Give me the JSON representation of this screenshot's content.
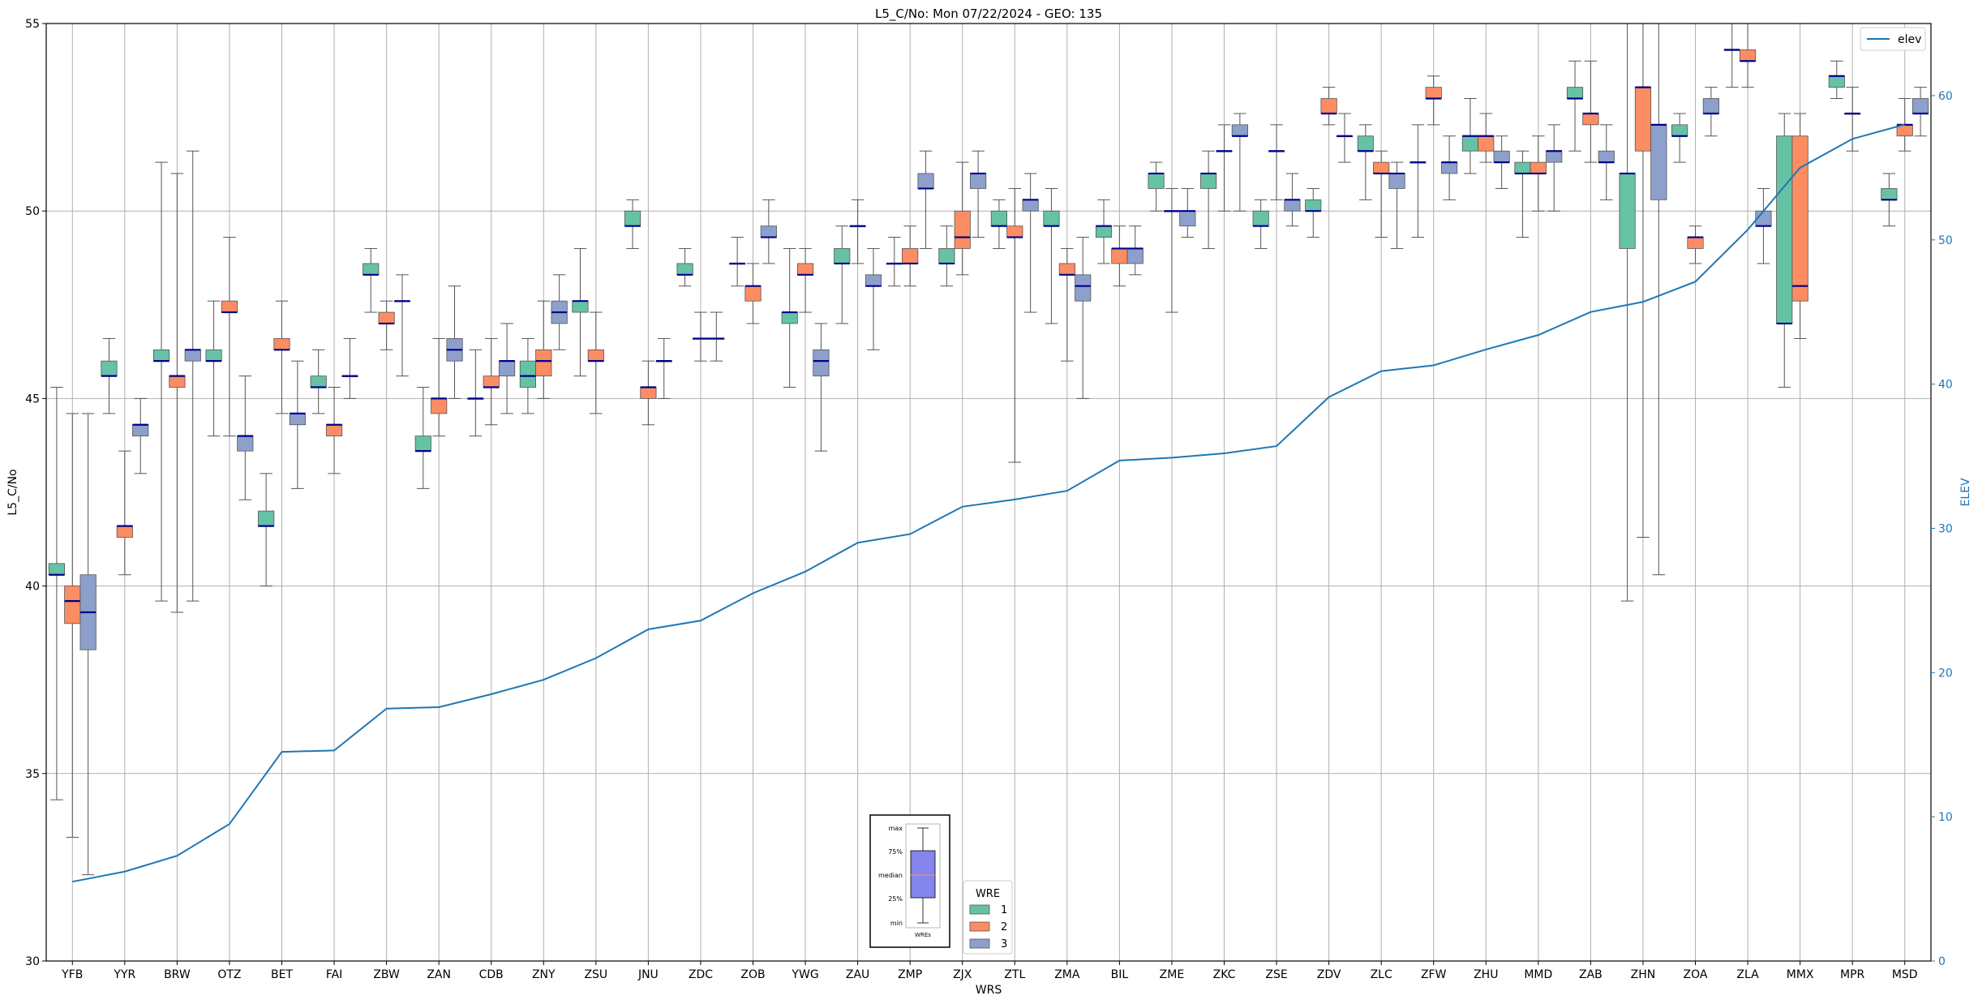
{
  "chart_data": {
    "type": "box",
    "title": "L5_C/No: Mon 07/22/2024 - GEO: 135",
    "xlabel": "WRS",
    "ylabel": "L5_C/No",
    "ylabel_right": "ELEV",
    "ylim": [
      30,
      55
    ],
    "ylim_right": [
      0,
      65
    ],
    "yticks": [
      30,
      35,
      40,
      45,
      50,
      55
    ],
    "yticks_right": [
      0,
      10,
      20,
      30,
      40,
      50,
      60
    ],
    "grid": true,
    "categories": [
      "YFB",
      "YYR",
      "BRW",
      "OTZ",
      "BET",
      "FAI",
      "ZBW",
      "ZAN",
      "CDB",
      "ZNY",
      "ZSU",
      "JNU",
      "ZDC",
      "ZOB",
      "YWG",
      "ZAU",
      "ZMP",
      "ZJX",
      "ZTL",
      "ZMA",
      "BIL",
      "ZME",
      "ZKC",
      "ZSE",
      "ZDV",
      "ZLC",
      "ZFW",
      "ZHU",
      "MMD",
      "ZAB",
      "ZHN",
      "ZOA",
      "ZLA",
      "MMX",
      "MPR",
      "MSD"
    ],
    "colors": {
      "wre1": "#66c2a5",
      "wre2": "#fc8d62",
      "wre3": "#8da0cb",
      "elev": "#1f77b4",
      "median": "#00008b"
    },
    "legend": {
      "title": "WRE",
      "entries": [
        "1",
        "2",
        "3"
      ]
    },
    "line_legend": {
      "entries": [
        "elev"
      ],
      "position": "upper right"
    },
    "inset_labels": [
      "max",
      "75%",
      "median",
      "25%",
      "min",
      "WREs"
    ],
    "boxes": [
      {
        "cat": "YFB",
        "wre": 1,
        "min": 34.3,
        "q1": 40.3,
        "med": 40.3,
        "q3": 40.6,
        "max": 45.3
      },
      {
        "cat": "YFB",
        "wre": 2,
        "min": 33.3,
        "q1": 39.0,
        "med": 39.6,
        "q3": 40.0,
        "max": 44.6
      },
      {
        "cat": "YFB",
        "wre": 3,
        "min": 32.3,
        "q1": 38.3,
        "med": 39.3,
        "q3": 40.3,
        "max": 44.6
      },
      {
        "cat": "YYR",
        "wre": 1,
        "min": 44.6,
        "q1": 45.6,
        "med": 45.6,
        "q3": 46.0,
        "max": 46.6
      },
      {
        "cat": "YYR",
        "wre": 2,
        "min": 40.3,
        "q1": 41.3,
        "med": 41.6,
        "q3": 41.6,
        "max": 43.6
      },
      {
        "cat": "YYR",
        "wre": 3,
        "min": 43.0,
        "q1": 44.0,
        "med": 44.3,
        "q3": 44.3,
        "max": 45.0
      },
      {
        "cat": "BRW",
        "wre": 1,
        "min": 39.6,
        "q1": 46.0,
        "med": 46.0,
        "q3": 46.3,
        "max": 51.3
      },
      {
        "cat": "BRW",
        "wre": 2,
        "min": 39.3,
        "q1": 45.3,
        "med": 45.6,
        "q3": 45.6,
        "max": 51.0
      },
      {
        "cat": "BRW",
        "wre": 3,
        "min": 39.6,
        "q1": 46.0,
        "med": 46.3,
        "q3": 46.3,
        "max": 51.6
      },
      {
        "cat": "OTZ",
        "wre": 1,
        "min": 44.0,
        "q1": 46.0,
        "med": 46.0,
        "q3": 46.3,
        "max": 47.6
      },
      {
        "cat": "OTZ",
        "wre": 2,
        "min": 44.0,
        "q1": 47.3,
        "med": 47.3,
        "q3": 47.6,
        "max": 49.3
      },
      {
        "cat": "OTZ",
        "wre": 3,
        "min": 42.3,
        "q1": 43.6,
        "med": 44.0,
        "q3": 44.0,
        "max": 45.6
      },
      {
        "cat": "BET",
        "wre": 1,
        "min": 40.0,
        "q1": 41.6,
        "med": 41.6,
        "q3": 42.0,
        "max": 43.0
      },
      {
        "cat": "BET",
        "wre": 2,
        "min": 44.6,
        "q1": 46.3,
        "med": 46.3,
        "q3": 46.6,
        "max": 47.6
      },
      {
        "cat": "BET",
        "wre": 3,
        "min": 42.6,
        "q1": 44.3,
        "med": 44.6,
        "q3": 44.6,
        "max": 46.0
      },
      {
        "cat": "FAI",
        "wre": 1,
        "min": 44.6,
        "q1": 45.3,
        "med": 45.3,
        "q3": 45.6,
        "max": 46.3
      },
      {
        "cat": "FAI",
        "wre": 2,
        "min": 43.0,
        "q1": 44.0,
        "med": 44.3,
        "q3": 44.3,
        "max": 45.3
      },
      {
        "cat": "FAI",
        "wre": 3,
        "min": 45.0,
        "q1": 45.6,
        "med": 45.6,
        "q3": 45.6,
        "max": 46.6
      },
      {
        "cat": "ZBW",
        "wre": 1,
        "min": 47.3,
        "q1": 48.3,
        "med": 48.3,
        "q3": 48.6,
        "max": 49.0
      },
      {
        "cat": "ZBW",
        "wre": 2,
        "min": 46.3,
        "q1": 47.0,
        "med": 47.0,
        "q3": 47.3,
        "max": 47.6
      },
      {
        "cat": "ZBW",
        "wre": 3,
        "min": 45.6,
        "q1": 47.6,
        "med": 47.6,
        "q3": 47.6,
        "max": 48.3
      },
      {
        "cat": "ZAN",
        "wre": 1,
        "min": 42.6,
        "q1": 43.6,
        "med": 43.6,
        "q3": 44.0,
        "max": 45.3
      },
      {
        "cat": "ZAN",
        "wre": 2,
        "min": 44.0,
        "q1": 44.6,
        "med": 45.0,
        "q3": 45.0,
        "max": 46.6
      },
      {
        "cat": "ZAN",
        "wre": 3,
        "min": 45.0,
        "q1": 46.0,
        "med": 46.3,
        "q3": 46.6,
        "max": 48.0
      },
      {
        "cat": "CDB",
        "wre": 1,
        "min": 44.0,
        "q1": 45.0,
        "med": 45.0,
        "q3": 45.0,
        "max": 46.3
      },
      {
        "cat": "CDB",
        "wre": 2,
        "min": 44.3,
        "q1": 45.3,
        "med": 45.3,
        "q3": 45.6,
        "max": 46.6
      },
      {
        "cat": "CDB",
        "wre": 3,
        "min": 44.6,
        "q1": 45.6,
        "med": 46.0,
        "q3": 46.0,
        "max": 47.0
      },
      {
        "cat": "ZNY",
        "wre": 1,
        "min": 44.6,
        "q1": 45.3,
        "med": 45.6,
        "q3": 46.0,
        "max": 46.6
      },
      {
        "cat": "ZNY",
        "wre": 2,
        "min": 45.0,
        "q1": 45.6,
        "med": 46.0,
        "q3": 46.3,
        "max": 47.6
      },
      {
        "cat": "ZNY",
        "wre": 3,
        "min": 46.3,
        "q1": 47.0,
        "med": 47.3,
        "q3": 47.6,
        "max": 48.3
      },
      {
        "cat": "ZSU",
        "wre": 1,
        "min": 45.6,
        "q1": 47.3,
        "med": 47.6,
        "q3": 47.6,
        "max": 49.0
      },
      {
        "cat": "ZSU",
        "wre": 2,
        "min": 44.6,
        "q1": 46.0,
        "med": 46.0,
        "q3": 46.3,
        "max": 47.3
      },
      {
        "cat": "JNU",
        "wre": 1,
        "min": 49.0,
        "q1": 49.6,
        "med": 49.6,
        "q3": 50.0,
        "max": 50.3
      },
      {
        "cat": "JNU",
        "wre": 2,
        "min": 44.3,
        "q1": 45.0,
        "med": 45.3,
        "q3": 45.3,
        "max": 46.0
      },
      {
        "cat": "JNU",
        "wre": 3,
        "min": 45.0,
        "q1": 46.0,
        "med": 46.0,
        "q3": 46.0,
        "max": 46.6
      },
      {
        "cat": "ZDC",
        "wre": 1,
        "min": 48.0,
        "q1": 48.3,
        "med": 48.3,
        "q3": 48.6,
        "max": 49.0
      },
      {
        "cat": "ZDC",
        "wre": 2,
        "min": 46.0,
        "q1": 46.6,
        "med": 46.6,
        "q3": 46.6,
        "max": 47.3
      },
      {
        "cat": "ZDC",
        "wre": 3,
        "min": 46.0,
        "q1": 46.6,
        "med": 46.6,
        "q3": 46.6,
        "max": 47.3
      },
      {
        "cat": "ZOB",
        "wre": 1,
        "min": 48.0,
        "q1": 48.6,
        "med": 48.6,
        "q3": 48.6,
        "max": 49.3
      },
      {
        "cat": "ZOB",
        "wre": 2,
        "min": 47.0,
        "q1": 47.6,
        "med": 48.0,
        "q3": 48.0,
        "max": 48.6
      },
      {
        "cat": "ZOB",
        "wre": 3,
        "min": 48.6,
        "q1": 49.3,
        "med": 49.3,
        "q3": 49.6,
        "max": 50.3
      },
      {
        "cat": "YWG",
        "wre": 1,
        "min": 45.3,
        "q1": 47.0,
        "med": 47.3,
        "q3": 47.3,
        "max": 49.0
      },
      {
        "cat": "YWG",
        "wre": 2,
        "min": 47.3,
        "q1": 48.3,
        "med": 48.3,
        "q3": 48.6,
        "max": 49.0
      },
      {
        "cat": "YWG",
        "wre": 3,
        "min": 43.6,
        "q1": 45.6,
        "med": 46.0,
        "q3": 46.3,
        "max": 47.0
      },
      {
        "cat": "ZAU",
        "wre": 1,
        "min": 47.0,
        "q1": 48.6,
        "med": 48.6,
        "q3": 49.0,
        "max": 49.6
      },
      {
        "cat": "ZAU",
        "wre": 2,
        "min": 48.6,
        "q1": 49.6,
        "med": 49.6,
        "q3": 49.6,
        "max": 50.3
      },
      {
        "cat": "ZAU",
        "wre": 3,
        "min": 46.3,
        "q1": 48.0,
        "med": 48.0,
        "q3": 48.3,
        "max": 49.0
      },
      {
        "cat": "ZMP",
        "wre": 1,
        "min": 48.0,
        "q1": 48.6,
        "med": 48.6,
        "q3": 48.6,
        "max": 49.3
      },
      {
        "cat": "ZMP",
        "wre": 2,
        "min": 48.0,
        "q1": 48.6,
        "med": 48.6,
        "q3": 49.0,
        "max": 49.6
      },
      {
        "cat": "ZMP",
        "wre": 3,
        "min": 49.0,
        "q1": 50.6,
        "med": 50.6,
        "q3": 51.0,
        "max": 51.6
      },
      {
        "cat": "ZJX",
        "wre": 1,
        "min": 48.0,
        "q1": 48.6,
        "med": 48.6,
        "q3": 49.0,
        "max": 49.6
      },
      {
        "cat": "ZJX",
        "wre": 2,
        "min": 48.3,
        "q1": 49.0,
        "med": 49.3,
        "q3": 50.0,
        "max": 51.3
      },
      {
        "cat": "ZJX",
        "wre": 3,
        "min": 49.3,
        "q1": 50.6,
        "med": 51.0,
        "q3": 51.0,
        "max": 51.6
      },
      {
        "cat": "ZTL",
        "wre": 1,
        "min": 49.0,
        "q1": 49.6,
        "med": 49.6,
        "q3": 50.0,
        "max": 50.3
      },
      {
        "cat": "ZTL",
        "wre": 2,
        "min": 43.3,
        "q1": 49.3,
        "med": 49.3,
        "q3": 49.6,
        "max": 50.6
      },
      {
        "cat": "ZTL",
        "wre": 3,
        "min": 47.3,
        "q1": 50.0,
        "med": 50.3,
        "q3": 50.3,
        "max": 51.0
      },
      {
        "cat": "ZMA",
        "wre": 1,
        "min": 47.0,
        "q1": 49.6,
        "med": 49.6,
        "q3": 50.0,
        "max": 50.6
      },
      {
        "cat": "ZMA",
        "wre": 2,
        "min": 46.0,
        "q1": 48.3,
        "med": 48.3,
        "q3": 48.6,
        "max": 49.0
      },
      {
        "cat": "ZMA",
        "wre": 3,
        "min": 45.0,
        "q1": 47.6,
        "med": 48.0,
        "q3": 48.3,
        "max": 49.3
      },
      {
        "cat": "BIL",
        "wre": 1,
        "min": 48.6,
        "q1": 49.3,
        "med": 49.6,
        "q3": 49.6,
        "max": 50.3
      },
      {
        "cat": "BIL",
        "wre": 2,
        "min": 48.0,
        "q1": 48.6,
        "med": 49.0,
        "q3": 49.0,
        "max": 49.6
      },
      {
        "cat": "BIL",
        "wre": 3,
        "min": 48.3,
        "q1": 48.6,
        "med": 49.0,
        "q3": 49.0,
        "max": 49.6
      },
      {
        "cat": "ZME",
        "wre": 1,
        "min": 50.0,
        "q1": 50.6,
        "med": 51.0,
        "q3": 51.0,
        "max": 51.3
      },
      {
        "cat": "ZME",
        "wre": 2,
        "min": 47.3,
        "q1": 50.0,
        "med": 50.0,
        "q3": 50.0,
        "max": 50.6
      },
      {
        "cat": "ZME",
        "wre": 3,
        "min": 49.3,
        "q1": 49.6,
        "med": 50.0,
        "q3": 50.0,
        "max": 50.6
      },
      {
        "cat": "ZKC",
        "wre": 1,
        "min": 49.0,
        "q1": 50.6,
        "med": 51.0,
        "q3": 51.0,
        "max": 51.6
      },
      {
        "cat": "ZKC",
        "wre": 2,
        "min": 50.0,
        "q1": 51.6,
        "med": 51.6,
        "q3": 51.6,
        "max": 52.3
      },
      {
        "cat": "ZKC",
        "wre": 3,
        "min": 50.0,
        "q1": 52.0,
        "med": 52.0,
        "q3": 52.3,
        "max": 52.6
      },
      {
        "cat": "ZSE",
        "wre": 1,
        "min": 49.0,
        "q1": 49.6,
        "med": 49.6,
        "q3": 50.0,
        "max": 50.3
      },
      {
        "cat": "ZSE",
        "wre": 2,
        "min": 50.3,
        "q1": 51.6,
        "med": 51.6,
        "q3": 51.6,
        "max": 52.3
      },
      {
        "cat": "ZSE",
        "wre": 3,
        "min": 49.6,
        "q1": 50.0,
        "med": 50.3,
        "q3": 50.3,
        "max": 51.0
      },
      {
        "cat": "ZDV",
        "wre": 1,
        "min": 49.3,
        "q1": 50.0,
        "med": 50.0,
        "q3": 50.3,
        "max": 50.6
      },
      {
        "cat": "ZDV",
        "wre": 2,
        "min": 52.3,
        "q1": 52.6,
        "med": 52.6,
        "q3": 53.0,
        "max": 53.3
      },
      {
        "cat": "ZDV",
        "wre": 3,
        "min": 51.3,
        "q1": 52.0,
        "med": 52.0,
        "q3": 52.0,
        "max": 52.6
      },
      {
        "cat": "ZLC",
        "wre": 1,
        "min": 50.3,
        "q1": 51.6,
        "med": 51.6,
        "q3": 52.0,
        "max": 52.3
      },
      {
        "cat": "ZLC",
        "wre": 2,
        "min": 49.3,
        "q1": 51.0,
        "med": 51.0,
        "q3": 51.3,
        "max": 51.6
      },
      {
        "cat": "ZLC",
        "wre": 3,
        "min": 49.0,
        "q1": 50.6,
        "med": 51.0,
        "q3": 51.0,
        "max": 51.3
      },
      {
        "cat": "ZFW",
        "wre": 1,
        "min": 49.3,
        "q1": 51.3,
        "med": 51.3,
        "q3": 51.3,
        "max": 52.3
      },
      {
        "cat": "ZFW",
        "wre": 2,
        "min": 52.3,
        "q1": 53.0,
        "med": 53.0,
        "q3": 53.3,
        "max": 53.6
      },
      {
        "cat": "ZFW",
        "wre": 3,
        "min": 50.3,
        "q1": 51.0,
        "med": 51.3,
        "q3": 51.3,
        "max": 52.0
      },
      {
        "cat": "ZHU",
        "wre": 1,
        "min": 51.0,
        "q1": 51.6,
        "med": 52.0,
        "q3": 52.0,
        "max": 53.0
      },
      {
        "cat": "ZHU",
        "wre": 2,
        "min": 51.3,
        "q1": 51.6,
        "med": 52.0,
        "q3": 52.0,
        "max": 52.6
      },
      {
        "cat": "ZHU",
        "wre": 3,
        "min": 50.6,
        "q1": 51.3,
        "med": 51.3,
        "q3": 51.6,
        "max": 52.0
      },
      {
        "cat": "MMD",
        "wre": 1,
        "min": 49.3,
        "q1": 51.0,
        "med": 51.0,
        "q3": 51.3,
        "max": 51.6
      },
      {
        "cat": "MMD",
        "wre": 2,
        "min": 50.0,
        "q1": 51.0,
        "med": 51.0,
        "q3": 51.3,
        "max": 52.0
      },
      {
        "cat": "MMD",
        "wre": 3,
        "min": 50.0,
        "q1": 51.3,
        "med": 51.6,
        "q3": 51.6,
        "max": 52.3
      },
      {
        "cat": "ZAB",
        "wre": 1,
        "min": 51.6,
        "q1": 53.0,
        "med": 53.0,
        "q3": 53.3,
        "max": 54.0
      },
      {
        "cat": "ZAB",
        "wre": 2,
        "min": 51.3,
        "q1": 52.3,
        "med": 52.6,
        "q3": 52.6,
        "max": 54.0
      },
      {
        "cat": "ZAB",
        "wre": 3,
        "min": 50.3,
        "q1": 51.3,
        "med": 51.3,
        "q3": 51.6,
        "max": 52.3
      },
      {
        "cat": "ZHN",
        "wre": 1,
        "min": 39.6,
        "q1": 49.0,
        "med": 51.0,
        "q3": 51.0,
        "max": 55.0
      },
      {
        "cat": "ZHN",
        "wre": 2,
        "min": 41.3,
        "q1": 51.6,
        "med": 53.3,
        "q3": 53.3,
        "max": 55.0
      },
      {
        "cat": "ZHN",
        "wre": 3,
        "min": 40.3,
        "q1": 50.3,
        "med": 52.3,
        "q3": 52.3,
        "max": 55.0
      },
      {
        "cat": "ZOA",
        "wre": 1,
        "min": 51.3,
        "q1": 52.0,
        "med": 52.0,
        "q3": 52.3,
        "max": 52.6
      },
      {
        "cat": "ZOA",
        "wre": 2,
        "min": 48.6,
        "q1": 49.0,
        "med": 49.3,
        "q3": 49.3,
        "max": 49.6
      },
      {
        "cat": "ZOA",
        "wre": 3,
        "min": 52.0,
        "q1": 52.6,
        "med": 52.6,
        "q3": 53.0,
        "max": 53.3
      },
      {
        "cat": "ZLA",
        "wre": 1,
        "min": 53.3,
        "q1": 54.3,
        "med": 54.3,
        "q3": 54.3,
        "max": 55.0
      },
      {
        "cat": "ZLA",
        "wre": 2,
        "min": 53.3,
        "q1": 54.0,
        "med": 54.0,
        "q3": 54.3,
        "max": 55.0
      },
      {
        "cat": "ZLA",
        "wre": 3,
        "min": 48.6,
        "q1": 49.6,
        "med": 49.6,
        "q3": 50.0,
        "max": 50.6
      },
      {
        "cat": "MMX",
        "wre": 1,
        "min": 45.3,
        "q1": 47.0,
        "med": 47.0,
        "q3": 52.0,
        "max": 52.6
      },
      {
        "cat": "MMX",
        "wre": 2,
        "min": 46.6,
        "q1": 47.6,
        "med": 48.0,
        "q3": 52.0,
        "max": 52.6
      },
      {
        "cat": "MPR",
        "wre": 1,
        "min": 53.0,
        "q1": 53.3,
        "med": 53.6,
        "q3": 53.6,
        "max": 54.0
      },
      {
        "cat": "MPR",
        "wre": 2,
        "min": 51.6,
        "q1": 52.6,
        "med": 52.6,
        "q3": 52.6,
        "max": 53.3
      },
      {
        "cat": "MSD",
        "wre": 1,
        "min": 49.6,
        "q1": 50.3,
        "med": 50.3,
        "q3": 50.6,
        "max": 51.0
      },
      {
        "cat": "MSD",
        "wre": 2,
        "min": 51.6,
        "q1": 52.0,
        "med": 52.3,
        "q3": 52.3,
        "max": 53.0
      },
      {
        "cat": "MSD",
        "wre": 3,
        "min": 52.0,
        "q1": 52.6,
        "med": 52.6,
        "q3": 53.0,
        "max": 53.3
      }
    ],
    "elev": [
      5.5,
      6.2,
      7.3,
      9.5,
      14.5,
      14.6,
      17.5,
      17.6,
      18.5,
      19.5,
      21.0,
      23.0,
      23.6,
      25.5,
      27.0,
      29.0,
      29.6,
      31.5,
      32.0,
      32.6,
      34.7,
      34.9,
      35.2,
      35.7,
      39.1,
      40.9,
      41.3,
      42.4,
      43.4,
      45.0,
      45.7,
      47.1,
      50.7,
      55.0,
      57.0,
      58.0
    ]
  }
}
